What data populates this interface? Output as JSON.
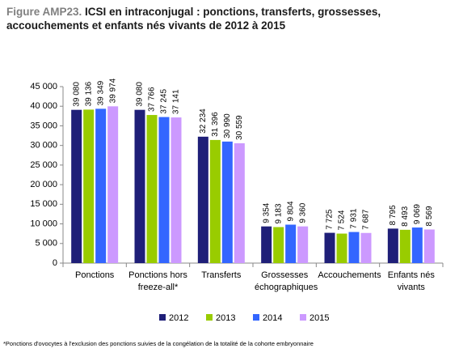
{
  "chart_data": {
    "type": "bar",
    "figure_label": "Figure AMP23.",
    "title": "ICSI en intraconjugal : ponctions, transferts, grossesses, accouchements et enfants nés vivants de 2012 à 2015",
    "categories": [
      "Ponctions",
      "Ponctions hors freeze-all*",
      "Transferts",
      "Grossesses échographiques",
      "Accouchements",
      "Enfants nés vivants"
    ],
    "series": [
      {
        "name": "2012",
        "color": "#1f1f78",
        "values": [
          39080,
          39080,
          32234,
          9354,
          7725,
          8795
        ],
        "value_labels": [
          "39 080",
          "39 080",
          "32 234",
          "9 354",
          "7 725",
          "8 795"
        ]
      },
      {
        "name": "2013",
        "color": "#99cc00",
        "values": [
          39136,
          37766,
          31396,
          9183,
          7524,
          8493
        ],
        "value_labels": [
          "39 136",
          "37 766",
          "31 396",
          "9 183",
          "7 524",
          "8 493"
        ]
      },
      {
        "name": "2014",
        "color": "#3366ff",
        "values": [
          39349,
          37245,
          30990,
          9804,
          7931,
          9069
        ],
        "value_labels": [
          "39 349",
          "37 245",
          "30 990",
          "9 804",
          "7 931",
          "9 069"
        ]
      },
      {
        "name": "2015",
        "color": "#cc99ff",
        "values": [
          39974,
          37141,
          30559,
          9360,
          7687,
          8569
        ],
        "value_labels": [
          "39 974",
          "37 141",
          "30 559",
          "9 360",
          "7 687",
          "8 569"
        ]
      }
    ],
    "ylim": [
      0,
      45000
    ],
    "yticks": [
      0,
      {
        "value": 5000,
        "label": "5 000"
      },
      {
        "value": 10000,
        "label": "10 000"
      },
      {
        "value": 15000,
        "label": "15 000"
      },
      {
        "value": 20000,
        "label": "20 000"
      },
      {
        "value": 25000,
        "label": "25 000"
      },
      {
        "value": 30000,
        "label": "30 000"
      },
      {
        "value": 35000,
        "label": "35 000"
      },
      {
        "value": 40000,
        "label": "40 000"
      },
      {
        "value": 45000,
        "label": "45 000"
      }
    ],
    "grid": false,
    "legend": "bottom",
    "footnote": "*Ponctions d'ovocytes à l'exclusion des ponctions suivies de la congélation de la totalité de la cohorte embryonnaire"
  }
}
